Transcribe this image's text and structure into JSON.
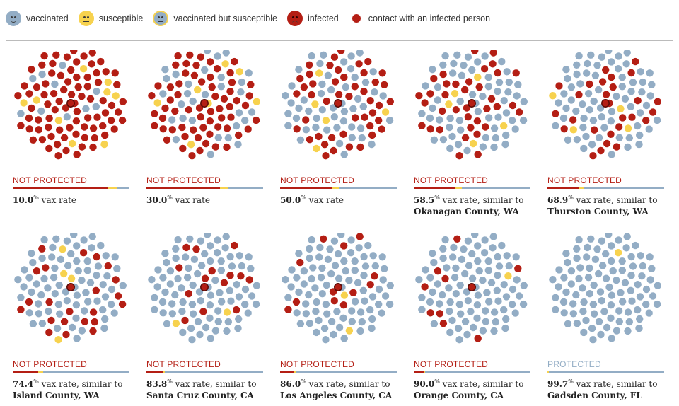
{
  "legend": [
    {
      "label": "vaccinated",
      "icon": "vaccinated-face-icon"
    },
    {
      "label": "susceptible",
      "icon": "susceptible-face-icon"
    },
    {
      "label": "vaccinated but susceptible",
      "icon": "vaccinated-susceptible-face-icon"
    },
    {
      "label": "infected",
      "icon": "infected-face-icon"
    },
    {
      "label": "contact with an infected person",
      "icon": "contact-dot-icon"
    }
  ],
  "colors": {
    "vaccinated": "#93adc5",
    "susceptible": "#f7d24e",
    "infected": "#b41e14",
    "protected_label": "#93adc5",
    "not_protected_label": "#b41e14"
  },
  "chart_data": {
    "type": "scatter",
    "title": "",
    "dots_per_panel": 100,
    "panels": [
      {
        "status": "NOT PROTECTED",
        "rate": "10.0",
        "suffix": "vax rate",
        "similar": "",
        "county": "",
        "infected_share": 0.81,
        "susceptible_share": 0.09,
        "vaccinated_share": 0.1
      },
      {
        "status": "NOT PROTECTED",
        "rate": "30.0",
        "suffix": "vax rate",
        "similar": "",
        "county": "",
        "infected_share": 0.63,
        "susceptible_share": 0.07,
        "vaccinated_share": 0.3
      },
      {
        "status": "NOT PROTECTED",
        "rate": "50.0",
        "suffix": "vax rate",
        "similar": "",
        "county": "",
        "infected_share": 0.45,
        "susceptible_share": 0.05,
        "vaccinated_share": 0.5
      },
      {
        "status": "NOT PROTECTED",
        "rate": "58.5",
        "suffix": "vax rate, similar to",
        "similar": "",
        "county": "Okanagan County, WA",
        "infected_share": 0.36,
        "susceptible_share": 0.05,
        "vaccinated_share": 0.59
      },
      {
        "status": "NOT PROTECTED",
        "rate": "68.9",
        "suffix": "vax rate, similar to",
        "similar": "",
        "county": "Thurston County, WA",
        "infected_share": 0.27,
        "susceptible_share": 0.04,
        "vaccinated_share": 0.69
      },
      {
        "status": "NOT PROTECTED",
        "rate": "74.4",
        "suffix": "vax rate, similar to",
        "similar": "",
        "county": "Island County, WA",
        "infected_share": 0.22,
        "susceptible_share": 0.04,
        "vaccinated_share": 0.74
      },
      {
        "status": "NOT PROTECTED",
        "rate": "83.8",
        "suffix": "vax rate, similar to",
        "similar": "",
        "county": "Santa Cruz County, CA",
        "infected_share": 0.14,
        "susceptible_share": 0.02,
        "vaccinated_share": 0.84
      },
      {
        "status": "NOT PROTECTED",
        "rate": "86.0",
        "suffix": "vax rate, similar to",
        "similar": "",
        "county": "Los Angeles County, CA",
        "infected_share": 0.12,
        "susceptible_share": 0.02,
        "vaccinated_share": 0.86
      },
      {
        "status": "NOT PROTECTED",
        "rate": "90.0",
        "suffix": "vax rate, similar to",
        "similar": "",
        "county": "Orange County, CA",
        "infected_share": 0.09,
        "susceptible_share": 0.01,
        "vaccinated_share": 0.9
      },
      {
        "status": "PROTECTED",
        "rate": "99.7",
        "suffix": "vax rate, similar to",
        "similar": "",
        "county": "Gadsden County, FL",
        "infected_share": 0.0,
        "susceptible_share": 0.01,
        "vaccinated_share": 0.99
      }
    ]
  }
}
